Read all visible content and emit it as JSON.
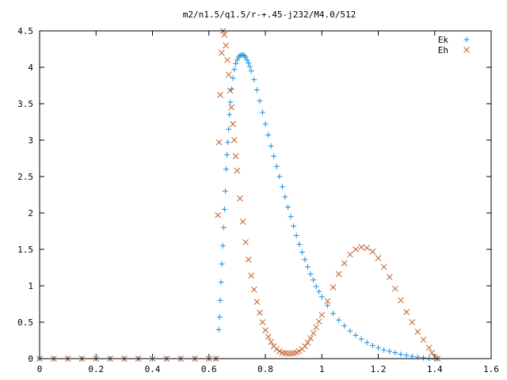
{
  "chart_data": {
    "type": "scatter",
    "title": "m2/n1.5/q1.5/r-+.45-j232/M4.0/512",
    "xlabel": "",
    "ylabel": "",
    "xlim": [
      0,
      1.6
    ],
    "ylim": [
      0,
      4.5
    ],
    "x_ticks": [
      0,
      0.2,
      0.4,
      0.6,
      0.8,
      1,
      1.2,
      1.4,
      1.6
    ],
    "x_tick_labels": [
      "0",
      "0.2",
      "0.4",
      "0.6",
      "0.8",
      "1",
      "1.2",
      "1.4",
      "1.6"
    ],
    "y_ticks": [
      0,
      0.5,
      1,
      1.5,
      2,
      2.5,
      3,
      3.5,
      4,
      4.5
    ],
    "y_tick_labels": [
      "0",
      "0.5",
      "1",
      "1.5",
      "2",
      "2.5",
      "3",
      "3.5",
      "4",
      "4.5"
    ],
    "grid": false,
    "legend_position": "top-right",
    "series": [
      {
        "name": "Ek",
        "marker": "plus",
        "color": "#1a8fe0",
        "points": [
          [
            0.0,
            0
          ],
          [
            0.05,
            0
          ],
          [
            0.1,
            0
          ],
          [
            0.15,
            0
          ],
          [
            0.2,
            0
          ],
          [
            0.25,
            0
          ],
          [
            0.3,
            0
          ],
          [
            0.35,
            0
          ],
          [
            0.4,
            0
          ],
          [
            0.45,
            0
          ],
          [
            0.5,
            0
          ],
          [
            0.55,
            0
          ],
          [
            0.6,
            0
          ],
          [
            0.625,
            0
          ],
          [
            0.635,
            0.4
          ],
          [
            0.638,
            0.57
          ],
          [
            0.64,
            0.8
          ],
          [
            0.643,
            1.05
          ],
          [
            0.646,
            1.3
          ],
          [
            0.649,
            1.55
          ],
          [
            0.652,
            1.8
          ],
          [
            0.655,
            2.05
          ],
          [
            0.658,
            2.3
          ],
          [
            0.661,
            2.6
          ],
          [
            0.664,
            2.8
          ],
          [
            0.667,
            2.97
          ],
          [
            0.67,
            3.15
          ],
          [
            0.673,
            3.35
          ],
          [
            0.676,
            3.52
          ],
          [
            0.68,
            3.7
          ],
          [
            0.685,
            3.85
          ],
          [
            0.69,
            3.97
          ],
          [
            0.695,
            4.05
          ],
          [
            0.7,
            4.1
          ],
          [
            0.705,
            4.14
          ],
          [
            0.71,
            4.16
          ],
          [
            0.715,
            4.17
          ],
          [
            0.72,
            4.17
          ],
          [
            0.725,
            4.16
          ],
          [
            0.73,
            4.14
          ],
          [
            0.735,
            4.1
          ],
          [
            0.74,
            4.06
          ],
          [
            0.745,
            4.01
          ],
          [
            0.75,
            3.95
          ],
          [
            0.76,
            3.83
          ],
          [
            0.77,
            3.69
          ],
          [
            0.78,
            3.54
          ],
          [
            0.79,
            3.38
          ],
          [
            0.8,
            3.22
          ],
          [
            0.81,
            3.07
          ],
          [
            0.82,
            2.92
          ],
          [
            0.83,
            2.78
          ],
          [
            0.84,
            2.64
          ],
          [
            0.85,
            2.5
          ],
          [
            0.86,
            2.36
          ],
          [
            0.87,
            2.22
          ],
          [
            0.88,
            2.08
          ],
          [
            0.89,
            1.95
          ],
          [
            0.9,
            1.82
          ],
          [
            0.91,
            1.69
          ],
          [
            0.92,
            1.57
          ],
          [
            0.93,
            1.46
          ],
          [
            0.94,
            1.36
          ],
          [
            0.95,
            1.26
          ],
          [
            0.96,
            1.16
          ],
          [
            0.97,
            1.08
          ],
          [
            0.98,
            0.99
          ],
          [
            0.99,
            0.92
          ],
          [
            1.0,
            0.85
          ],
          [
            1.02,
            0.73
          ],
          [
            1.04,
            0.62
          ],
          [
            1.06,
            0.53
          ],
          [
            1.08,
            0.45
          ],
          [
            1.1,
            0.38
          ],
          [
            1.12,
            0.32
          ],
          [
            1.14,
            0.27
          ],
          [
            1.16,
            0.22
          ],
          [
            1.18,
            0.18
          ],
          [
            1.2,
            0.15
          ],
          [
            1.22,
            0.12
          ],
          [
            1.24,
            0.1
          ],
          [
            1.26,
            0.08
          ],
          [
            1.28,
            0.06
          ],
          [
            1.3,
            0.045
          ],
          [
            1.32,
            0.03
          ],
          [
            1.34,
            0.02
          ],
          [
            1.36,
            0.012
          ],
          [
            1.38,
            0.006
          ],
          [
            1.4,
            0.002
          ],
          [
            1.41,
            0
          ]
        ]
      },
      {
        "name": "Eh",
        "marker": "cross",
        "color": "#c0602a",
        "points": [
          [
            0.0,
            0
          ],
          [
            0.05,
            0
          ],
          [
            0.1,
            0
          ],
          [
            0.15,
            0
          ],
          [
            0.2,
            0
          ],
          [
            0.25,
            0
          ],
          [
            0.3,
            0
          ],
          [
            0.35,
            0
          ],
          [
            0.4,
            0
          ],
          [
            0.45,
            0
          ],
          [
            0.5,
            0
          ],
          [
            0.55,
            0
          ],
          [
            0.6,
            0
          ],
          [
            0.625,
            0
          ],
          [
            0.632,
            1.97
          ],
          [
            0.636,
            2.97
          ],
          [
            0.64,
            3.62
          ],
          [
            0.645,
            4.2
          ],
          [
            0.65,
            4.5
          ],
          [
            0.655,
            4.45
          ],
          [
            0.66,
            4.3
          ],
          [
            0.665,
            4.1
          ],
          [
            0.67,
            3.9
          ],
          [
            0.675,
            3.68
          ],
          [
            0.68,
            3.45
          ],
          [
            0.685,
            3.22
          ],
          [
            0.69,
            3.0
          ],
          [
            0.695,
            2.78
          ],
          [
            0.7,
            2.58
          ],
          [
            0.71,
            2.2
          ],
          [
            0.72,
            1.88
          ],
          [
            0.73,
            1.6
          ],
          [
            0.74,
            1.36
          ],
          [
            0.75,
            1.14
          ],
          [
            0.76,
            0.95
          ],
          [
            0.77,
            0.78
          ],
          [
            0.78,
            0.63
          ],
          [
            0.79,
            0.5
          ],
          [
            0.8,
            0.39
          ],
          [
            0.81,
            0.3
          ],
          [
            0.82,
            0.23
          ],
          [
            0.83,
            0.17
          ],
          [
            0.84,
            0.13
          ],
          [
            0.85,
            0.1
          ],
          [
            0.86,
            0.08
          ],
          [
            0.87,
            0.075
          ],
          [
            0.88,
            0.07
          ],
          [
            0.89,
            0.07
          ],
          [
            0.9,
            0.075
          ],
          [
            0.91,
            0.085
          ],
          [
            0.92,
            0.1
          ],
          [
            0.93,
            0.13
          ],
          [
            0.94,
            0.17
          ],
          [
            0.95,
            0.22
          ],
          [
            0.96,
            0.28
          ],
          [
            0.97,
            0.35
          ],
          [
            0.98,
            0.43
          ],
          [
            0.99,
            0.51
          ],
          [
            1.0,
            0.6
          ],
          [
            1.02,
            0.79
          ],
          [
            1.04,
            0.98
          ],
          [
            1.06,
            1.16
          ],
          [
            1.08,
            1.31
          ],
          [
            1.1,
            1.43
          ],
          [
            1.12,
            1.5
          ],
          [
            1.14,
            1.53
          ],
          [
            1.16,
            1.52
          ],
          [
            1.18,
            1.47
          ],
          [
            1.2,
            1.38
          ],
          [
            1.22,
            1.26
          ],
          [
            1.24,
            1.12
          ],
          [
            1.26,
            0.96
          ],
          [
            1.28,
            0.8
          ],
          [
            1.3,
            0.64
          ],
          [
            1.32,
            0.5
          ],
          [
            1.34,
            0.37
          ],
          [
            1.36,
            0.26
          ],
          [
            1.38,
            0.15
          ],
          [
            1.39,
            0.08
          ],
          [
            1.4,
            0.02
          ],
          [
            1.41,
            0
          ]
        ]
      }
    ]
  }
}
